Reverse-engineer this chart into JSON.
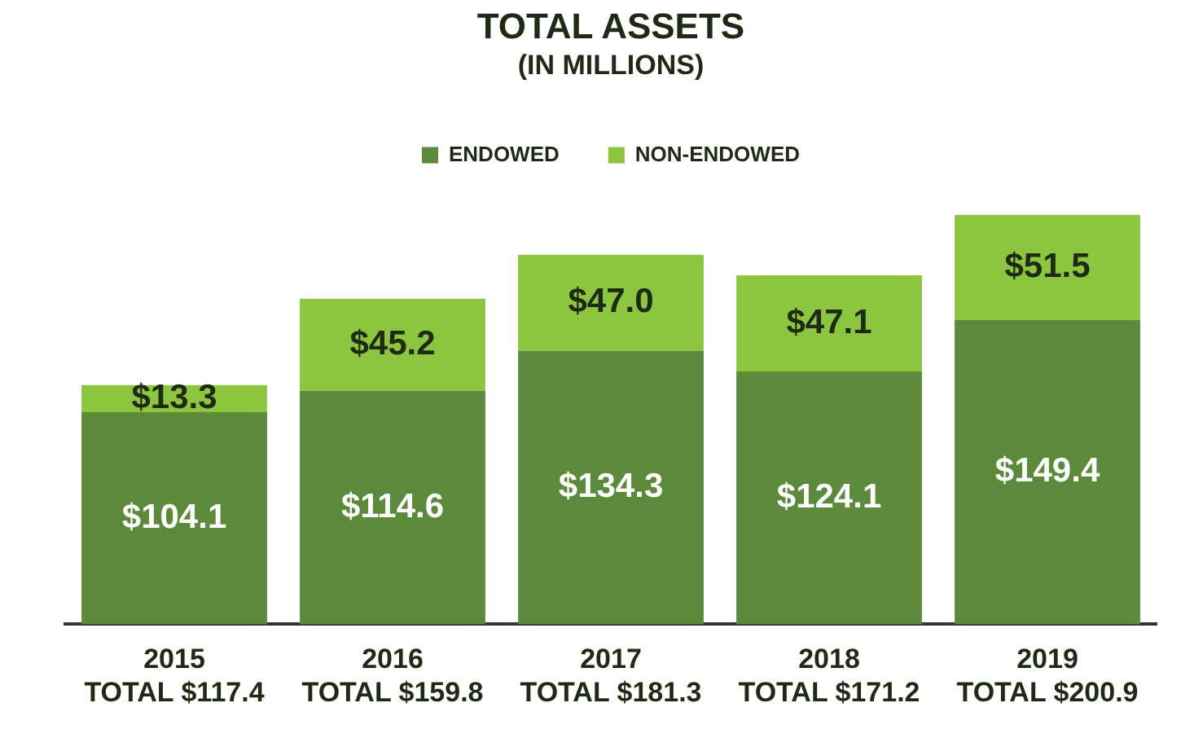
{
  "chart_data": {
    "type": "bar",
    "title": "TOTAL ASSETS",
    "subtitle": "(IN MILLIONS)",
    "categories": [
      "2015",
      "2016",
      "2017",
      "2018",
      "2019"
    ],
    "stacked": true,
    "legend": "top",
    "grid": false,
    "series": [
      {
        "name": "ENDOWED",
        "color": "#5b8a3a",
        "values": [
          104.1,
          114.6,
          134.3,
          124.1,
          149.4
        ],
        "value_labels": [
          "$104.1",
          "$114.6",
          "$134.3",
          "$124.1",
          "$149.4"
        ]
      },
      {
        "name": "NON-ENDOWED",
        "color": "#8cc63f",
        "values": [
          13.3,
          45.2,
          47.0,
          47.1,
          51.5
        ],
        "value_labels": [
          "$13.3",
          "$45.2",
          "$47.0",
          "$47.1",
          "$51.5"
        ]
      }
    ],
    "totals": [
      "TOTAL $117.4",
      "TOTAL $159.8",
      "TOTAL $181.3",
      "TOTAL $171.2",
      "TOTAL $200.9"
    ]
  }
}
